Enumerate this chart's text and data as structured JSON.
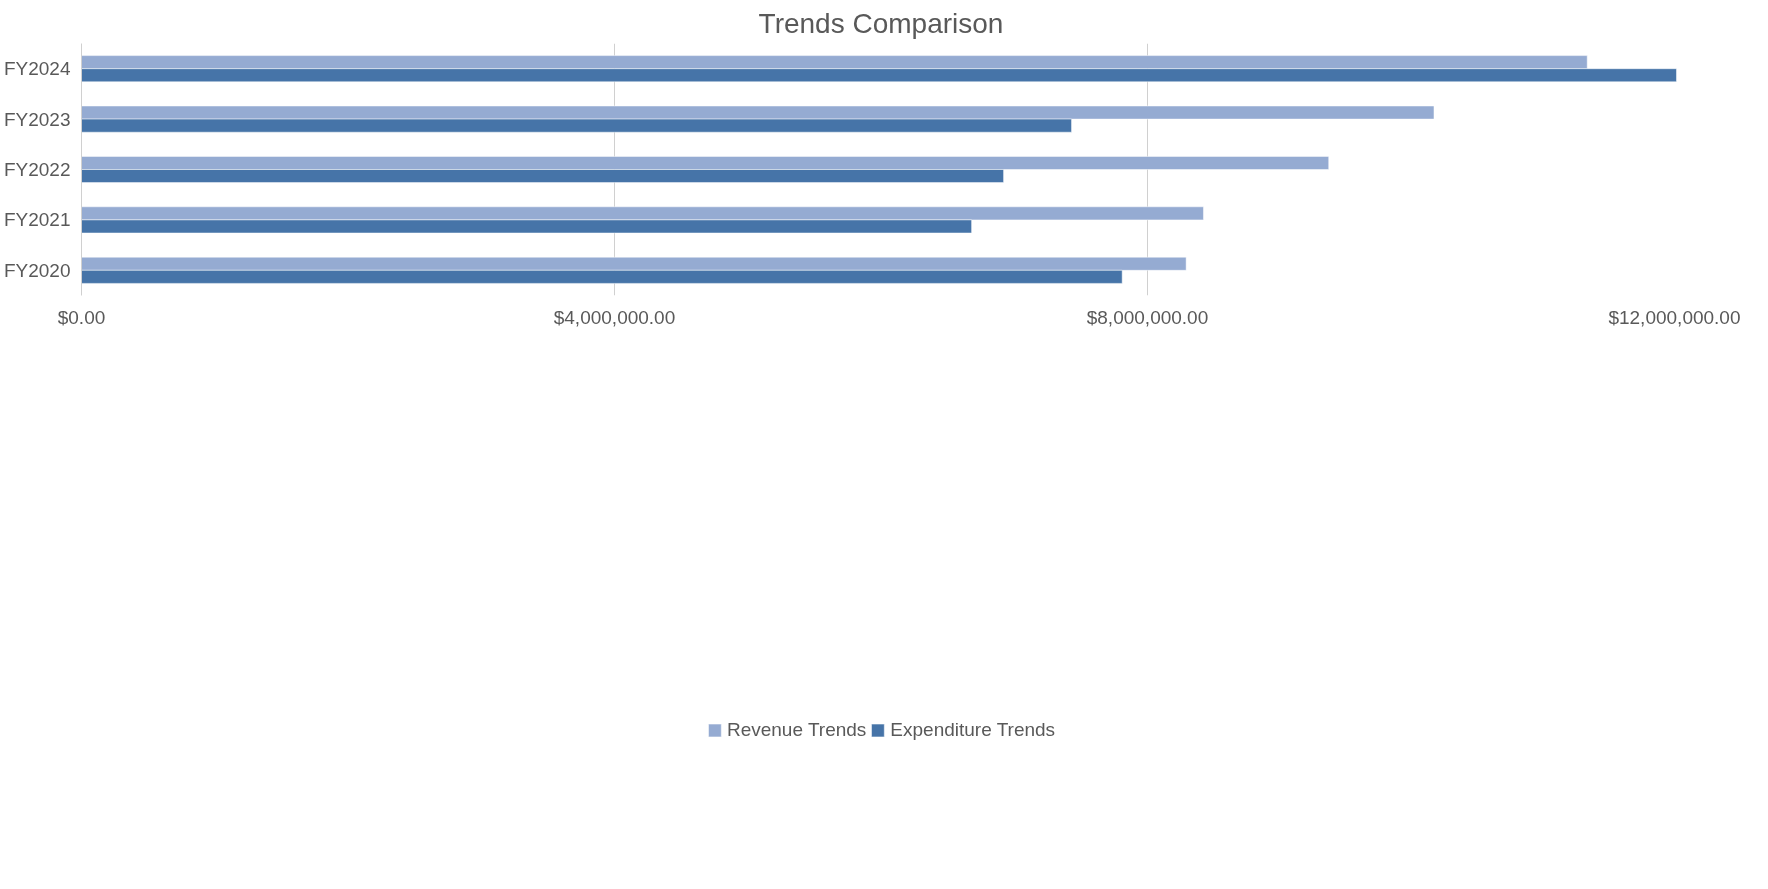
{
  "chart_data": {
    "type": "bar",
    "orientation": "horizontal",
    "title": "Trends Comparison",
    "categories": [
      "FY2024",
      "FY2023",
      "FY2022",
      "FY2021",
      "FY2020"
    ],
    "series": [
      {
        "name": "Revenue Trends",
        "color": "#95abd2",
        "values": [
          11300000,
          10150000,
          9360000,
          8420000,
          8290000
        ]
      },
      {
        "name": "Expenditure Trends",
        "color": "#4674a8",
        "values": [
          11970000,
          7430000,
          6920000,
          6680000,
          7810000
        ]
      }
    ],
    "xlim": [
      0,
      12000000
    ],
    "xticks": [
      {
        "value": 0,
        "label": "$0.00"
      },
      {
        "value": 4000000,
        "label": "$4,000,000.00"
      },
      {
        "value": 8000000,
        "label": "$8,000,000.00"
      },
      {
        "value": 12000000,
        "label": "$12,000,000.00"
      }
    ],
    "grid": "x",
    "legend": "bottom"
  }
}
